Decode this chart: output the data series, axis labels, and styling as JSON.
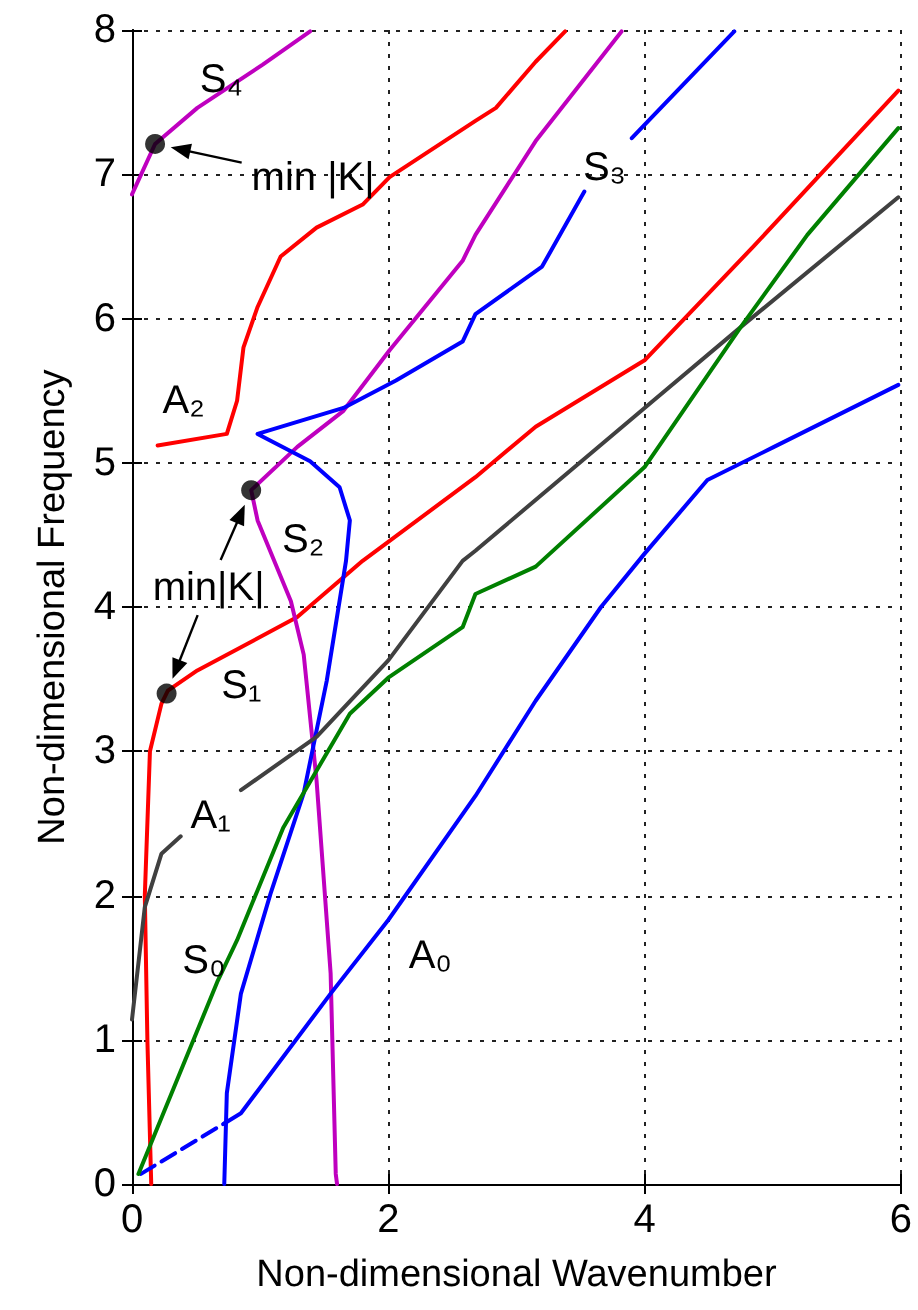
{
  "chart_data": {
    "type": "line",
    "xlabel": "Non-dimensional Wavenumber",
    "ylabel": "Non-dimensional Frequency",
    "xlim": [
      0,
      6
    ],
    "xticks": [
      0,
      2,
      4,
      6
    ],
    "ylim": [
      0,
      8
    ],
    "yticks": [
      0,
      1,
      2,
      3,
      4,
      5,
      6,
      7,
      8
    ],
    "grid": true,
    "marker": "none",
    "line_style": "solid",
    "series": [
      {
        "name": "S₁",
        "color": "#ff0000",
        "x": [
          0.15,
          0.12,
          0.1,
          0.14,
          0.23,
          0.28,
          0.51,
          1.29,
          1.8,
          2.68,
          3.15,
          4.0,
          4.85,
          5.98
        ],
        "values": [
          0,
          1.0,
          2.0,
          3.0,
          3.33,
          3.42,
          3.56,
          3.93,
          4.32,
          4.9,
          5.25,
          5.71,
          6.5,
          7.58
        ]
      },
      {
        "name": "A₂",
        "color": "#ff0000",
        "x": [
          0.2,
          0.74,
          0.82,
          0.87,
          0.98,
          1.16,
          1.44,
          1.8,
          2.01,
          2.68,
          2.84,
          3.15,
          3.38
        ],
        "values": [
          5.12,
          5.2,
          5.43,
          5.8,
          6.08,
          6.43,
          6.63,
          6.79,
          6.98,
          7.37,
          7.46,
          7.78,
          7.99
        ]
      },
      {
        "name": "S₄",
        "color": "#bf00bf",
        "x": [
          0,
          0.18,
          0.51,
          1.02,
          1.39
        ],
        "values": [
          6.86,
          7.21,
          7.46,
          7.76,
          7.99
        ]
      },
      {
        "name": "S₂",
        "color": "#bf00bf",
        "x": [
          3.82,
          3.15,
          2.68,
          2.58,
          2.01,
          1.65,
          1.29,
          0.93,
          0.98,
          1.24,
          1.34,
          1.44,
          1.55,
          1.59,
          1.6
        ],
        "values": [
          7.99,
          7.23,
          6.58,
          6.4,
          5.78,
          5.36,
          5.11,
          4.81,
          4.6,
          4.04,
          3.67,
          2.8,
          1.46,
          0.07,
          0
        ]
      },
      {
        "name": "S₃",
        "color": "#0000ff",
        "x": [
          0.72,
          0.74,
          0.85,
          1.08,
          1.34,
          1.52,
          1.67,
          1.7,
          1.62,
          1.39,
          0.98,
          1.65,
          2.06,
          2.58,
          2.68,
          3.2,
          3.53,
          3.7,
          3.9,
          4.7
        ],
        "values": [
          0,
          0.63,
          1.32,
          2.01,
          2.71,
          3.49,
          4.32,
          4.6,
          4.83,
          5.01,
          5.2,
          5.38,
          5.57,
          5.84,
          6.03,
          6.36,
          6.88,
          null,
          7.25,
          7.99
        ]
      },
      {
        "color": "#0000ff",
        "line_style": "dashed",
        "x": [
          0.07,
          0.72
        ],
        "values": [
          0.07,
          0.42
        ]
      },
      {
        "name": "A₀",
        "color": "#0000ff",
        "x": [
          0.72,
          0.85,
          1.55,
          2.0,
          2.68,
          3.15,
          3.66,
          4.0,
          4.49,
          5.01,
          5.98
        ],
        "values": [
          0.42,
          0.49,
          1.32,
          1.83,
          2.69,
          3.35,
          4.0,
          4.37,
          4.88,
          5.11,
          5.54
        ]
      },
      {
        "name": "A₁",
        "color": "#404040",
        "x": [
          0,
          0.1,
          0.23,
          0.38,
          0.6,
          0.85,
          1.44,
          2.0,
          2.58,
          2.68,
          4.0,
          4.75,
          5.98
        ],
        "values": [
          1.14,
          1.92,
          2.29,
          2.41,
          null,
          2.73,
          3.1,
          3.63,
          4.32,
          4.39,
          5.38,
          5.94,
          6.84
        ]
      },
      {
        "name": "S₀",
        "color": "#008000",
        "x": [
          0.05,
          0.67,
          0.82,
          1.18,
          1.7,
          2.0,
          2.58,
          2.68,
          3.15,
          4.0,
          4.75,
          5.27,
          5.98
        ],
        "values": [
          0.07,
          1.41,
          1.69,
          2.47,
          3.26,
          3.51,
          3.86,
          4.09,
          4.28,
          4.97,
          5.94,
          6.58,
          7.32
        ]
      },
      {
        "type": "scatter",
        "marker": "circle",
        "color": "#000000",
        "x": [
          0.18,
          0.93,
          0.27
        ],
        "values": [
          7.21,
          4.81,
          3.4
        ]
      }
    ],
    "annotations": [
      "min |K|",
      "min|K|"
    ]
  }
}
